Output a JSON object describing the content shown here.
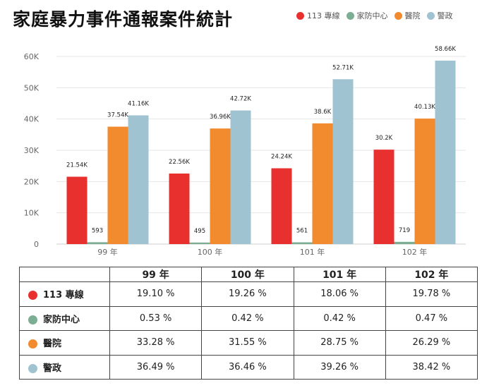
{
  "title": "家庭暴力事件通報案件統計",
  "chart_data": {
    "type": "bar",
    "categories": [
      "99 年",
      "100 年",
      "101 年",
      "102 年"
    ],
    "series": [
      {
        "name": "113 專線",
        "color": "#e8312f",
        "values": [
          21540,
          22560,
          24240,
          30200
        ],
        "labels": [
          "21.54K",
          "22.56K",
          "24.24K",
          "30.2K"
        ]
      },
      {
        "name": "家防中心",
        "color": "#7bae92",
        "values": [
          593,
          495,
          561,
          719
        ],
        "labels": [
          "593",
          "495",
          "561",
          "719"
        ]
      },
      {
        "name": "醫院",
        "color": "#f28a2e",
        "values": [
          37540,
          36960,
          38600,
          40130
        ],
        "labels": [
          "37.54K",
          "36.96K",
          "38.6K",
          "40.13K"
        ]
      },
      {
        "name": "警政",
        "color": "#a0c3d1",
        "values": [
          41160,
          42720,
          52710,
          58660
        ],
        "labels": [
          "41.16K",
          "42.72K",
          "52.71K",
          "58.66K"
        ]
      }
    ],
    "yticks": [
      "0",
      "10K",
      "20K",
      "30K",
      "40K",
      "50K",
      "60K"
    ],
    "ylim": [
      0,
      60000
    ],
    "grid": true,
    "legend": "top-right"
  },
  "table": {
    "headers": [
      "",
      "99 年",
      "100 年",
      "101 年",
      "102 年"
    ],
    "rows": [
      {
        "label": "113 專線",
        "color": "#e8312f",
        "cells": [
          "19.10 %",
          "19.26 %",
          "18.06 %",
          "19.78 %"
        ]
      },
      {
        "label": "家防中心",
        "color": "#7bae92",
        "cells": [
          "0.53 %",
          "0.42 %",
          "0.42 %",
          "0.47 %"
        ]
      },
      {
        "label": "醫院",
        "color": "#f28a2e",
        "cells": [
          "33.28 %",
          "31.55 %",
          "28.75 %",
          "26.29 %"
        ]
      },
      {
        "label": "警政",
        "color": "#a0c3d1",
        "cells": [
          "36.49 %",
          "36.46 %",
          "39.26 %",
          "38.42 %"
        ]
      }
    ]
  }
}
